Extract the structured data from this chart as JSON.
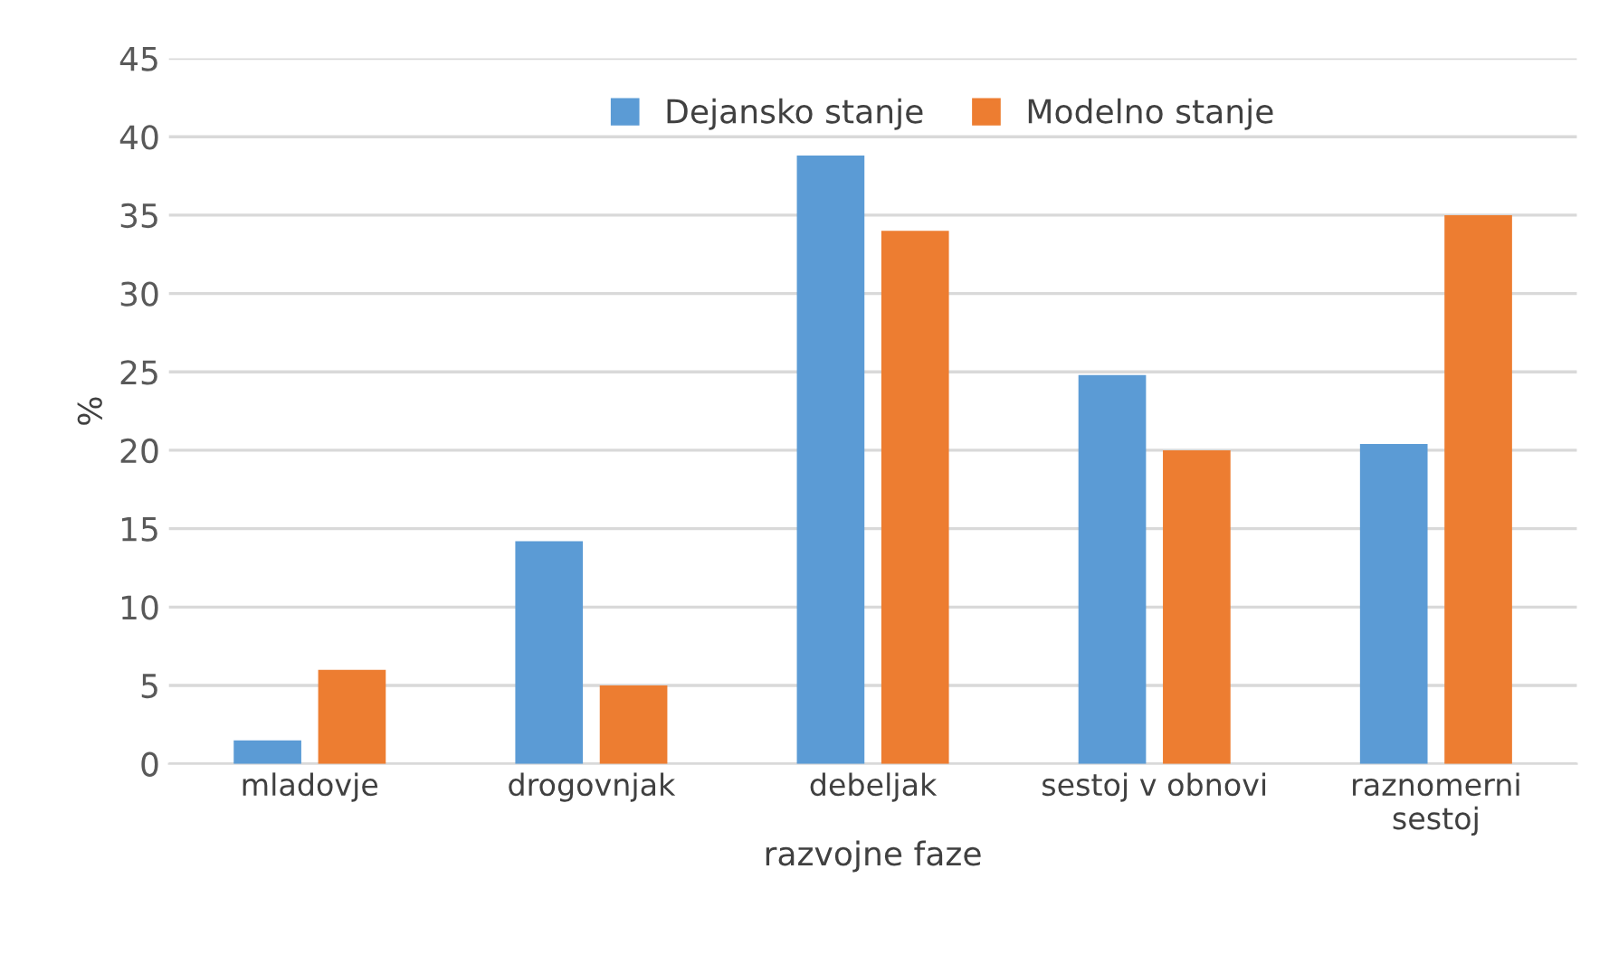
{
  "chart_data": {
    "type": "bar",
    "xlabel": "razvojne faze",
    "ylabel": "%",
    "categories": [
      "mladovje",
      "drogovnjak",
      "debeljak",
      "sestoj v obnovi",
      "raznomerni\nsestoj"
    ],
    "series": [
      {
        "name": "Dejansko stanje",
        "color": "#5b9bd5",
        "values": [
          1.5,
          14.2,
          38.8,
          24.8,
          20.4
        ]
      },
      {
        "name": "Modelno stanje",
        "color": "#ed7d31",
        "values": [
          6.0,
          5.0,
          34.0,
          20.0,
          35.0
        ]
      }
    ],
    "ylim": [
      0,
      45
    ],
    "yticks": [
      0,
      5,
      10,
      15,
      20,
      25,
      30,
      35,
      40,
      45
    ],
    "grid": "y",
    "legend": "top"
  }
}
